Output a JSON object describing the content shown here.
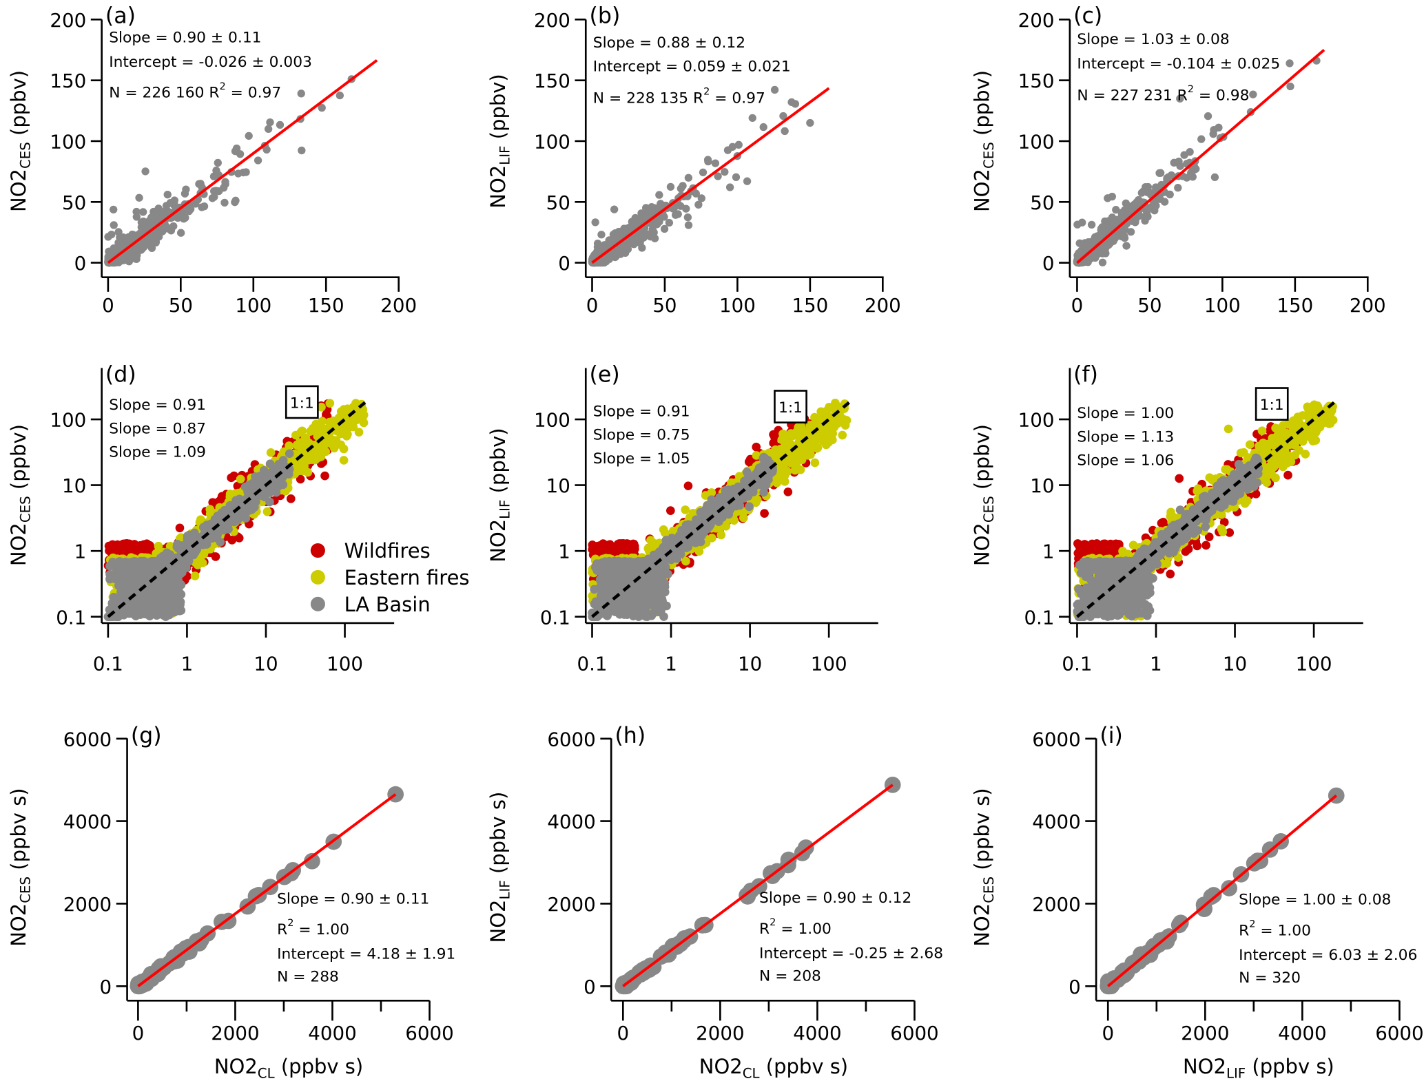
{
  "colors": {
    "fit_line": "#ff0000",
    "points": "#888888",
    "wildfires": "#cc0000",
    "eastern_fires": "#cccc00",
    "eastern_text": "#a3a300",
    "la_basin": "#888888",
    "one_to_one": "#000000"
  },
  "chart_data": [
    {
      "panel": "(a)",
      "type": "scatter",
      "ylabel": {
        "main": "NO2",
        "sub": "CES",
        "unit": " (ppbv)"
      },
      "xlabel": null,
      "xlim": [
        0,
        200
      ],
      "ylim": [
        0,
        200
      ],
      "xticks": [
        "0",
        "50",
        "100",
        "150",
        "200"
      ],
      "yticks": [
        "0",
        "50",
        "100",
        "150",
        "200"
      ],
      "fit": {
        "slope": 0.9,
        "intercept": -0.026,
        "xmax": 185
      },
      "stats": {
        "slope": "Slope = 0.90 ± 0.11",
        "intercept": "Intercept = -0.026 ± 0.003",
        "n": "N = 226 160",
        "r2": " = 0.97"
      }
    },
    {
      "panel": "(b)",
      "type": "scatter",
      "ylabel": {
        "main": "NO2",
        "sub": "LIF",
        "unit": " (ppbv)"
      },
      "xlabel": null,
      "xlim": [
        0,
        200
      ],
      "ylim": [
        0,
        200
      ],
      "xticks": [
        "0",
        "50",
        "100",
        "150",
        "200"
      ],
      "yticks": [
        "0",
        "50",
        "100",
        "150",
        "200"
      ],
      "fit": {
        "slope": 0.88,
        "intercept": 0.059,
        "xmax": 163
      },
      "stats": {
        "slope": "Slope = 0.88 ± 0.12",
        "intercept": "Intercept = 0.059 ± 0.021",
        "n": "N = 228 135",
        "r2": " = 0.97"
      }
    },
    {
      "panel": "(c)",
      "type": "scatter",
      "ylabel": {
        "main": "NO2",
        "sub": "CES",
        "unit": " (ppbv)"
      },
      "xlabel": null,
      "xlim": [
        0,
        200
      ],
      "ylim": [
        0,
        200
      ],
      "xticks": [
        "0",
        "50",
        "100",
        "150",
        "200"
      ],
      "yticks": [
        "0",
        "50",
        "100",
        "150",
        "200"
      ],
      "fit": {
        "slope": 1.03,
        "intercept": -0.104,
        "xmax": 170
      },
      "stats": {
        "slope": "Slope = 1.03 ± 0.08",
        "intercept": "Intercept = -0.104 ± 0.025",
        "n": "N = 227 231",
        "r2": " = 0.98"
      }
    },
    {
      "panel": "(d)",
      "type": "scatter",
      "scale": "log",
      "ylabel": {
        "main": "NO2",
        "sub": "CES",
        "unit": " (ppbv)"
      },
      "xlabel": null,
      "xticks": [
        "0.1",
        "1",
        "10",
        "100"
      ],
      "yticks": [
        "0.1",
        "1",
        "10",
        "100"
      ],
      "one_to_one": "1:1",
      "series": [
        {
          "name": "Wildfires",
          "slope": "Slope = 0.91"
        },
        {
          "name": "Eastern fires",
          "slope": "Slope = 0.87"
        },
        {
          "name": "LA Basin",
          "slope": "Slope = 1.09"
        }
      ],
      "legend": "bottom-right"
    },
    {
      "panel": "(e)",
      "type": "scatter",
      "scale": "log",
      "ylabel": {
        "main": "NO2",
        "sub": "LIF",
        "unit": " (ppbv)"
      },
      "xlabel": null,
      "xticks": [
        "0.1",
        "1",
        "10",
        "100"
      ],
      "yticks": [
        "0.1",
        "1",
        "10",
        "100"
      ],
      "one_to_one": "1:1",
      "series": [
        {
          "name": "Wildfires",
          "slope": "Slope = 0.91"
        },
        {
          "name": "Eastern fires",
          "slope": "Slope = 0.75"
        },
        {
          "name": "LA Basin",
          "slope": "Slope = 1.05"
        }
      ]
    },
    {
      "panel": "(f)",
      "type": "scatter",
      "scale": "log",
      "ylabel": {
        "main": "NO2",
        "sub": "CES",
        "unit": " (ppbv)"
      },
      "xlabel": null,
      "xticks": [
        "0.1",
        "1",
        "10",
        "100"
      ],
      "yticks": [
        "0.1",
        "1",
        "10",
        "100"
      ],
      "one_to_one": "1:1",
      "series": [
        {
          "name": "Wildfires",
          "slope": "Slope = 1.00"
        },
        {
          "name": "Eastern fires",
          "slope": "Slope = 1.13"
        },
        {
          "name": "LA Basin",
          "slope": "Slope = 1.06"
        }
      ]
    },
    {
      "panel": "(g)",
      "type": "scatter",
      "ylabel": {
        "main": "NO2",
        "sub": "CES",
        "unit": " (ppbv s)"
      },
      "xlabel": {
        "main": "NO2",
        "sub": "CL",
        "unit": " (ppbv s)"
      },
      "xlim": [
        0,
        6000
      ],
      "ylim": [
        0,
        6000
      ],
      "xticks": [
        "0",
        "2000",
        "4000",
        "6000"
      ],
      "yticks": [
        "0",
        "2000",
        "4000",
        "6000"
      ],
      "fit": {
        "slope": 0.9,
        "intercept": 4.18,
        "xmax": 5300
      },
      "points_end": [
        5300,
        4650
      ],
      "stats": {
        "slope": "Slope = 0.90 ± 0.11",
        "r2": " = 1.00",
        "intercept": "Intercept = 4.18 ± 1.91",
        "n": "N = 288"
      }
    },
    {
      "panel": "(h)",
      "type": "scatter",
      "ylabel": {
        "main": "NO2",
        "sub": "LIF",
        "unit": " (ppbv s)"
      },
      "xlabel": {
        "main": "NO2",
        "sub": "CL",
        "unit": " (ppbv s)"
      },
      "xlim": [
        0,
        6000
      ],
      "ylim": [
        0,
        6000
      ],
      "xticks": [
        "0",
        "2000",
        "4000",
        "6000"
      ],
      "yticks": [
        "0",
        "2000",
        "4000",
        "6000"
      ],
      "fit": {
        "slope": 0.9,
        "intercept": -0.25,
        "xmax": 5550
      },
      "points_end": [
        5550,
        4880
      ],
      "stats": {
        "slope": "Slope = 0.90 ± 0.12",
        "r2": " = 1.00",
        "intercept": "Intercept = -0.25 ± 2.68",
        "n": "N = 208"
      }
    },
    {
      "panel": "(i)",
      "type": "scatter",
      "ylabel": {
        "main": "NO2",
        "sub": "CES",
        "unit": " (ppbv s)"
      },
      "xlabel": {
        "main": "NO2",
        "sub": "LIF",
        "unit": " (ppbv s)"
      },
      "xlim": [
        0,
        6000
      ],
      "ylim": [
        0,
        6000
      ],
      "xticks": [
        "0",
        "2000",
        "4000",
        "6000"
      ],
      "yticks": [
        "0",
        "2000",
        "4000",
        "6000"
      ],
      "fit": {
        "slope": 1.0,
        "intercept": 6.03,
        "xmax": 4700
      },
      "points_end": [
        4700,
        4620
      ],
      "stats": {
        "slope": "Slope = 1.00 ± 0.08",
        "r2": " = 1.00",
        "intercept": "Intercept = 6.03 ± 2.06",
        "n": "N = 320"
      }
    }
  ]
}
